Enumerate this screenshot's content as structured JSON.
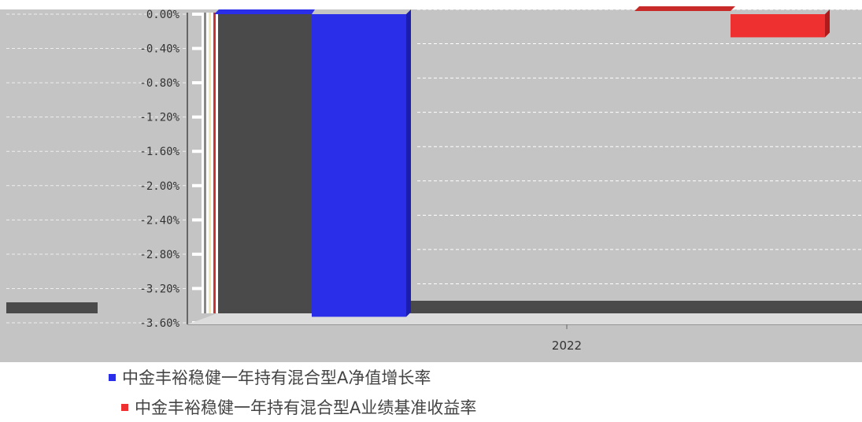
{
  "chart_data": {
    "type": "bar",
    "categories": [
      "2022"
    ],
    "series": [
      {
        "name": "中金丰裕稳健一年持有混合型A净值增长率",
        "values": [
          -3.53
        ],
        "color": "#2b2ee8"
      },
      {
        "name": "中金丰裕稳健一年持有混合型A业绩基准收益率",
        "values": [
          -0.27
        ],
        "color": "#ee3030"
      }
    ],
    "ylim": [
      -3.6,
      0.0
    ],
    "yticks": [
      0.0,
      -0.4,
      -0.8,
      -1.2,
      -1.6,
      -2.0,
      -2.4,
      -2.8,
      -3.2,
      -3.6
    ],
    "ytick_labels": [
      "0.00%",
      "-0.40%",
      "-0.80%",
      "-1.20%",
      "-1.60%",
      "-2.00%",
      "-2.40%",
      "-2.80%",
      "-3.20%",
      "-3.60%"
    ],
    "grid": true,
    "legend_position": "bottom",
    "colors": {
      "background_band": "#c4c4c4",
      "dark_panel": "#4a4a4a"
    }
  }
}
